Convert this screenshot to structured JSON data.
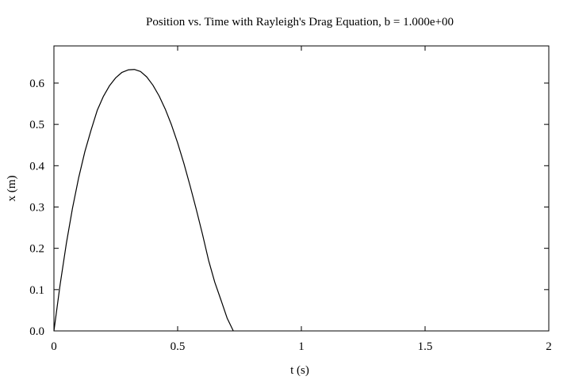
{
  "chart_data": {
    "type": "line",
    "title": "Position vs. Time with Rayleigh's Drag Equation, b = 1.000e+00",
    "xlabel": "t (s)",
    "ylabel": "x (m)",
    "xlim": [
      0,
      2
    ],
    "ylim": [
      0,
      0.69
    ],
    "x_ticks": [
      {
        "value": 0,
        "label": "0"
      },
      {
        "value": 0.5,
        "label": "0.5"
      },
      {
        "value": 1,
        "label": "1"
      },
      {
        "value": 1.5,
        "label": "1.5"
      },
      {
        "value": 2,
        "label": "2"
      }
    ],
    "y_ticks": [
      {
        "value": 0,
        "label": "0.0"
      },
      {
        "value": 0.1,
        "label": "0.1"
      },
      {
        "value": 0.2,
        "label": "0.2"
      },
      {
        "value": 0.3,
        "label": "0.3"
      },
      {
        "value": 0.4,
        "label": "0.4"
      },
      {
        "value": 0.5,
        "label": "0.5"
      },
      {
        "value": 0.6,
        "label": "0.6"
      }
    ],
    "grid": false,
    "legend": "none",
    "series": [
      {
        "color": "#000000",
        "x": [
          0,
          0.025,
          0.05,
          0.075,
          0.1,
          0.125,
          0.15,
          0.175,
          0.2,
          0.225,
          0.25,
          0.275,
          0.3,
          0.325,
          0.35,
          0.375,
          0.4,
          0.425,
          0.45,
          0.475,
          0.5,
          0.525,
          0.55,
          0.575,
          0.6,
          0.625,
          0.65,
          0.675,
          0.7,
          0.725
        ],
        "y": [
          0,
          0.112,
          0.211,
          0.297,
          0.371,
          0.434,
          0.486,
          0.534,
          0.568,
          0.594,
          0.613,
          0.626,
          0.632,
          0.633,
          0.628,
          0.615,
          0.595,
          0.569,
          0.537,
          0.499,
          0.455,
          0.406,
          0.352,
          0.295,
          0.235,
          0.171,
          0.118,
          0.075,
          0.031,
          0
        ]
      }
    ]
  }
}
